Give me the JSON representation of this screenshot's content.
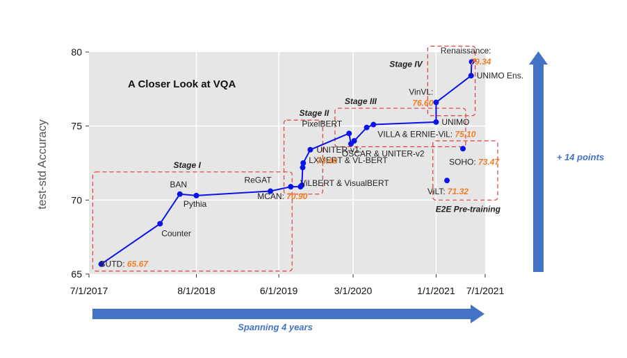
{
  "chart_data": {
    "type": "line",
    "title": "A Closer Look at VQA",
    "ylabel": "test-std Accuracy",
    "xlabel": "",
    "x_axis_type": "date",
    "xlim": [
      "2017-07-01",
      "2021-07-01"
    ],
    "ylim": [
      65,
      80
    ],
    "x_ticks": [
      "7/1/2017",
      "8/1/2018",
      "6/1/2019",
      "3/1/2020",
      "1/1/2021",
      "7/1/2021"
    ],
    "x_tick_dates": [
      "2017-07-01",
      "2018-08-01",
      "2019-06-01",
      "2020-03-01",
      "2021-01-01",
      "2021-07-01"
    ],
    "y_ticks": [
      65,
      70,
      75,
      80
    ],
    "grid": true,
    "background": "#e6e6e6",
    "series_color": "#0a14e6",
    "series": [
      {
        "points": [
          {
            "x": "2017-08-15",
            "y": 65.67
          },
          {
            "x": "2018-03-20",
            "y": 68.4
          },
          {
            "x": "2018-06-01",
            "y": 70.4
          },
          {
            "x": "2018-08-01",
            "y": 70.3
          },
          {
            "x": "2019-05-01",
            "y": 70.6
          },
          {
            "x": "2019-07-15",
            "y": 70.9
          },
          {
            "x": "2019-08-20",
            "y": 70.9
          },
          {
            "x": "2019-08-25",
            "y": 71.0
          },
          {
            "x": "2019-08-28",
            "y": 72.2
          },
          {
            "x": "2019-08-30",
            "y": 72.5
          },
          {
            "x": "2019-09-25",
            "y": 73.4
          },
          {
            "x": "2020-02-15",
            "y": 74.5
          },
          {
            "x": "2020-02-22",
            "y": 73.8
          },
          {
            "x": "2020-03-05",
            "y": 74.0
          },
          {
            "x": "2020-04-20",
            "y": 74.9
          },
          {
            "x": "2020-05-15",
            "y": 75.1
          },
          {
            "x": "2021-01-01",
            "y": 75.27
          },
          {
            "x": "2021-01-01",
            "y": 76.6
          },
          {
            "x": "2021-05-10",
            "y": 78.4
          },
          {
            "x": "2021-05-12",
            "y": 79.34
          }
        ]
      }
    ],
    "extra_points": [
      {
        "x": "2021-04-10",
        "y": 73.47
      },
      {
        "x": "2021-02-10",
        "y": 71.32
      }
    ],
    "annotations": [
      {
        "label": "BUTD: ",
        "value": "65.67",
        "x": "2017-08-15",
        "y": 65.67
      },
      {
        "label": "Counter",
        "value": "",
        "x": "2018-03-20",
        "y": 68.4
      },
      {
        "label": "BAN",
        "value": "",
        "x": "2018-06-01",
        "y": 70.4
      },
      {
        "label": "Pythia",
        "value": "",
        "x": "2018-08-01",
        "y": 70.3
      },
      {
        "label": "ReGAT",
        "value": "",
        "x": "2019-05-01",
        "y": 70.6
      },
      {
        "label": "MCAN: ",
        "value": "70.90",
        "x": "2019-07-15",
        "y": 70.9
      },
      {
        "label": "ViLBERT & VisualBERT",
        "value": "",
        "x": "2019-08-25",
        "y": 71.0
      },
      {
        "label": "LXMERT & VL-BERT",
        "value": "",
        "x": "2019-08-30",
        "y": 72.5
      },
      {
        "label": "UNITER-v1:",
        "value": "73.40",
        "x": "2019-09-25",
        "y": 73.4
      },
      {
        "label": "PixelBERT",
        "value": "",
        "x": "2020-02-15",
        "y": 74.5
      },
      {
        "label": "OSCAR & UNITER-v2",
        "value": "",
        "x": "2020-02-22",
        "y": 73.8
      },
      {
        "label": "VILLA & ERNIE-ViL: ",
        "value": "75.10",
        "x": "2020-05-15",
        "y": 75.1
      },
      {
        "label": "UNIMO",
        "value": "",
        "x": "2021-01-01",
        "y": 75.27
      },
      {
        "label": "VinVL:",
        "value": "76.60",
        "x": "2021-01-01",
        "y": 76.6
      },
      {
        "label": "UNIMO Ens.",
        "value": "",
        "x": "2021-05-10",
        "y": 78.4
      },
      {
        "label": "Renaissance:",
        "value": "79.34",
        "x": "2021-05-12",
        "y": 79.34
      },
      {
        "label": "SOHO: ",
        "value": "73.47",
        "x": "2021-04-10",
        "y": 73.47
      },
      {
        "label": "ViLT: ",
        "value": "71.32",
        "x": "2021-02-10",
        "y": 71.32
      }
    ],
    "stages": [
      {
        "label": "Stage I",
        "x_from": "2017-07-15",
        "x_to": "2019-07-20",
        "y_from": 65.2,
        "y_to": 71.9
      },
      {
        "label": "Stage II",
        "x_from": "2019-06-20",
        "x_to": "2019-11-10",
        "y_from": 70.4,
        "y_to": 75.4
      },
      {
        "label": "Stage III",
        "x_from": "2019-12-25",
        "x_to": "2021-04-20",
        "y_from": 73.6,
        "y_to": 76.2
      },
      {
        "label": "Stage IV",
        "x_from": "2020-12-01",
        "x_to": "2021-05-25",
        "y_from": 75.7,
        "y_to": 80.4
      }
    ],
    "e2e_box": {
      "label": "E2E Pre-training",
      "x_from": "2020-12-20",
      "x_to": "2021-07-01",
      "y_from": 70.0,
      "y_to": 74.0
    }
  },
  "arrows": {
    "horizontal_label": "Spanning 4 years",
    "vertical_label": "+ 14 points",
    "color": "#4472c4"
  }
}
